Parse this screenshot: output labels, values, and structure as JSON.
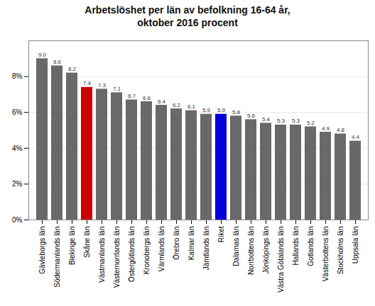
{
  "chart_data": {
    "type": "bar",
    "title": "Arbetslöshet per län av befolkning 16-64 år,\noktober 2016 procent",
    "categories": [
      "Gävleborgs län",
      "Södermanlands län",
      "Blekinge län",
      "Skåne län",
      "Västmanlands län",
      "Västernorrlands län",
      "Östergötlands län",
      "Kronobergs län",
      "Värmlands län",
      "Örebro län",
      "Kalmar län",
      "Jämtlands län",
      "Riket",
      "Dalarnas län",
      "Norrbottens län",
      "Jönköpings län",
      "Västra Götalands län",
      "Hallands län",
      "Gotlands län",
      "Västerbottens län",
      "Stockholms län",
      "Uppsala län"
    ],
    "values": [
      9.0,
      8.6,
      8.2,
      7.4,
      7.3,
      7.1,
      6.7,
      6.6,
      6.4,
      6.2,
      6.1,
      5.9,
      5.9,
      5.8,
      5.6,
      5.4,
      5.3,
      5.3,
      5.2,
      4.9,
      4.8,
      4.4
    ],
    "value_labels": [
      "9.0",
      "8.6",
      "8.2",
      "7.4",
      "7.3",
      "7.1",
      "6.7",
      "6.6",
      "6.4",
      "6.2",
      "6.1",
      "5.9",
      "5.9",
      "5.8",
      "5.6",
      "5.4",
      "5.3",
      "5.3",
      "5.2",
      "4.9",
      "4.8",
      "4.4"
    ],
    "colors": [
      "#696969",
      "#696969",
      "#696969",
      "#cc0000",
      "#696969",
      "#696969",
      "#696969",
      "#696969",
      "#696969",
      "#696969",
      "#696969",
      "#696969",
      "#0000dd",
      "#696969",
      "#696969",
      "#696969",
      "#696969",
      "#696969",
      "#696969",
      "#696969",
      "#696969",
      "#696969"
    ],
    "ylim": [
      0,
      10
    ],
    "yticks": [
      {
        "value": 0,
        "label": "0%"
      },
      {
        "value": 2,
        "label": "2%"
      },
      {
        "value": 4,
        "label": "4%"
      },
      {
        "value": 6,
        "label": "6%"
      },
      {
        "value": 8,
        "label": "8%"
      }
    ],
    "grid": true,
    "data_labels": true
  }
}
